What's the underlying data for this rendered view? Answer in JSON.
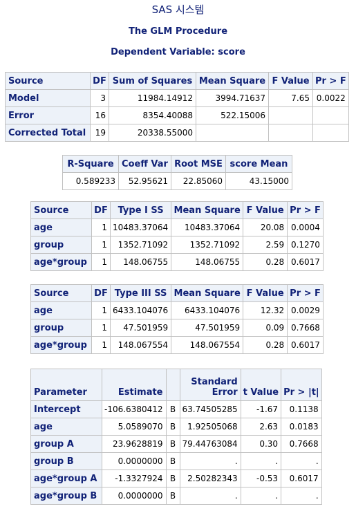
{
  "titles": {
    "system": "SAS 시스템",
    "procedure": "The GLM Procedure",
    "dependent": "Dependent Variable: score"
  },
  "anova": {
    "headers": [
      "Source",
      "DF",
      "Sum of Squares",
      "Mean Square",
      "F Value",
      "Pr > F"
    ],
    "rows": [
      [
        "Model",
        "3",
        "11984.14912",
        "3994.71637",
        "7.65",
        "0.0022"
      ],
      [
        "Error",
        "16",
        "8354.40088",
        "522.15006",
        "",
        ""
      ],
      [
        "Corrected Total",
        "19",
        "20338.55000",
        "",
        "",
        ""
      ]
    ]
  },
  "fit": {
    "headers": [
      "R-Square",
      "Coeff Var",
      "Root MSE",
      "score Mean"
    ],
    "values": [
      "0.589233",
      "52.95621",
      "22.85060",
      "43.15000"
    ]
  },
  "type1": {
    "headers": [
      "Source",
      "DF",
      "Type I SS",
      "Mean Square",
      "F Value",
      "Pr > F"
    ],
    "rows": [
      [
        "age",
        "1",
        "10483.37064",
        "10483.37064",
        "20.08",
        "0.0004"
      ],
      [
        "group",
        "1",
        "1352.71092",
        "1352.71092",
        "2.59",
        "0.1270"
      ],
      [
        "age*group",
        "1",
        "148.06755",
        "148.06755",
        "0.28",
        "0.6017"
      ]
    ]
  },
  "type3": {
    "headers": [
      "Source",
      "DF",
      "Type III SS",
      "Mean Square",
      "F Value",
      "Pr > F"
    ],
    "rows": [
      [
        "age",
        "1",
        "6433.104076",
        "6433.104076",
        "12.32",
        "0.0029"
      ],
      [
        "group",
        "1",
        "47.501959",
        "47.501959",
        "0.09",
        "0.7668"
      ],
      [
        "age*group",
        "1",
        "148.067554",
        "148.067554",
        "0.28",
        "0.6017"
      ]
    ]
  },
  "params": {
    "headers": [
      "Parameter",
      "Estimate",
      "",
      "Standard Error",
      "t Value",
      "Pr > |t|"
    ],
    "se_line1": "Standard",
    "se_line2": "Error",
    "rows": [
      [
        "Intercept",
        "-106.6380412",
        "B",
        "63.74505285",
        "-1.67",
        "0.1138"
      ],
      [
        "age",
        "5.0589070",
        "B",
        "1.92505068",
        "2.63",
        "0.0183"
      ],
      [
        "group A",
        "23.9628819",
        "B",
        "79.44763084",
        "0.30",
        "0.7668"
      ],
      [
        "group B",
        "0.0000000",
        "B",
        ".",
        ".",
        "."
      ],
      [
        "age*group A",
        "-1.3327924",
        "B",
        "2.50282343",
        "-0.53",
        "0.6017"
      ],
      [
        "age*group B",
        "0.0000000",
        "B",
        ".",
        ".",
        "."
      ]
    ]
  }
}
